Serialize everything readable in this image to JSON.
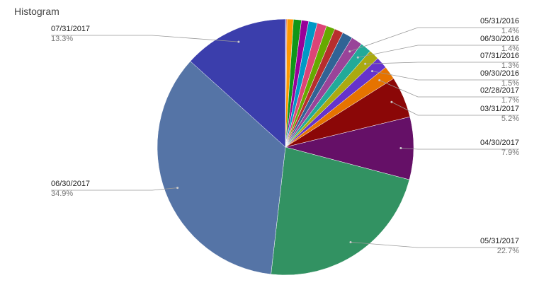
{
  "chart_data": {
    "type": "pie",
    "title": "Histogram",
    "categories": [
      null,
      null,
      null,
      null,
      null,
      null,
      null,
      null,
      null,
      null,
      "05/31/2016",
      "06/30/2016",
      "07/31/2016",
      "09/30/2016",
      "02/28/2017",
      "03/31/2017",
      "04/30/2017",
      "05/31/2017",
      "06/30/2017",
      "07/31/2017"
    ],
    "values": [
      0.1,
      0.1,
      0.8,
      1.0,
      0.9,
      1.1,
      1.2,
      1.1,
      1.1,
      1.3,
      1.4,
      1.4,
      1.3,
      1.5,
      1.7,
      5.2,
      7.9,
      22.7,
      34.9,
      13.3
    ],
    "value_labels": [
      null,
      null,
      null,
      null,
      null,
      null,
      null,
      null,
      null,
      null,
      "1.4%",
      "1.4%",
      "1.3%",
      "1.5%",
      "1.7%",
      "5.2%",
      "7.9%",
      "22.7%",
      "34.9%",
      "13.3%"
    ],
    "colors": [
      "#3366cc",
      "#dc3912",
      "#ff9900",
      "#109618",
      "#990099",
      "#0099c6",
      "#dd4477",
      "#66aa00",
      "#b82e2e",
      "#316395",
      "#994499",
      "#22aa99",
      "#aaaa11",
      "#6633cc",
      "#e67300",
      "#8b0707",
      "#651067",
      "#329262",
      "#5574a6",
      "#3b3eac"
    ]
  }
}
